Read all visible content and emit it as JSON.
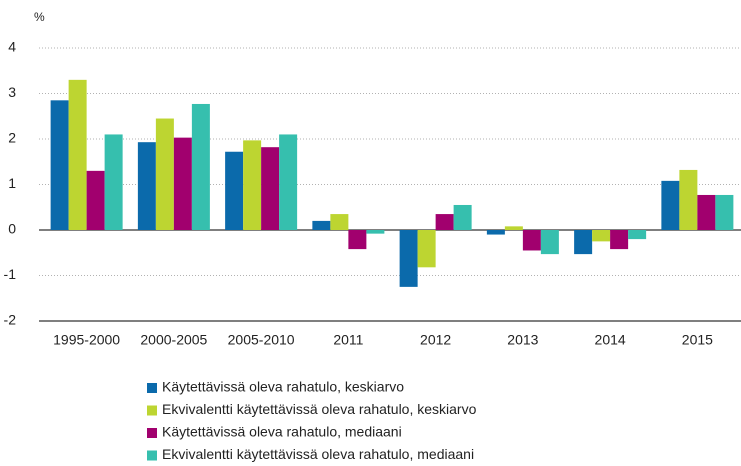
{
  "chart_data": {
    "type": "bar",
    "y_label": "%",
    "categories": [
      "1995-2000",
      "2000-2005",
      "2005-2010",
      "2011",
      "2012",
      "2013",
      "2014",
      "2015"
    ],
    "series": [
      {
        "name": "Käytettävissä oleva rahatulo, keskiarvo",
        "color": "#0b6aab",
        "values": [
          2.85,
          1.93,
          1.72,
          0.2,
          -1.25,
          -0.1,
          -0.53,
          1.08
        ]
      },
      {
        "name": "Ekvivalentti käytettävissä oleva rahatulo, keskiarvo",
        "color": "#bdd531",
        "values": [
          3.3,
          2.45,
          1.97,
          0.35,
          -0.82,
          0.08,
          -0.25,
          1.32
        ]
      },
      {
        "name": "Käytettävissä oleva rahatulo, mediaani",
        "color": "#a1006e",
        "values": [
          1.3,
          2.03,
          1.82,
          -0.42,
          0.35,
          -0.45,
          -0.42,
          0.77
        ]
      },
      {
        "name": "Ekvivalentti käytettävissä oleva rahatulo, mediaani",
        "color": "#36bfae",
        "values": [
          2.1,
          2.77,
          2.1,
          -0.08,
          0.55,
          -0.53,
          -0.2,
          0.77
        ]
      }
    ],
    "ylim": [
      -2,
      4
    ],
    "yticks": [
      -2,
      -1,
      0,
      1,
      2,
      3,
      4
    ],
    "grid": true
  }
}
